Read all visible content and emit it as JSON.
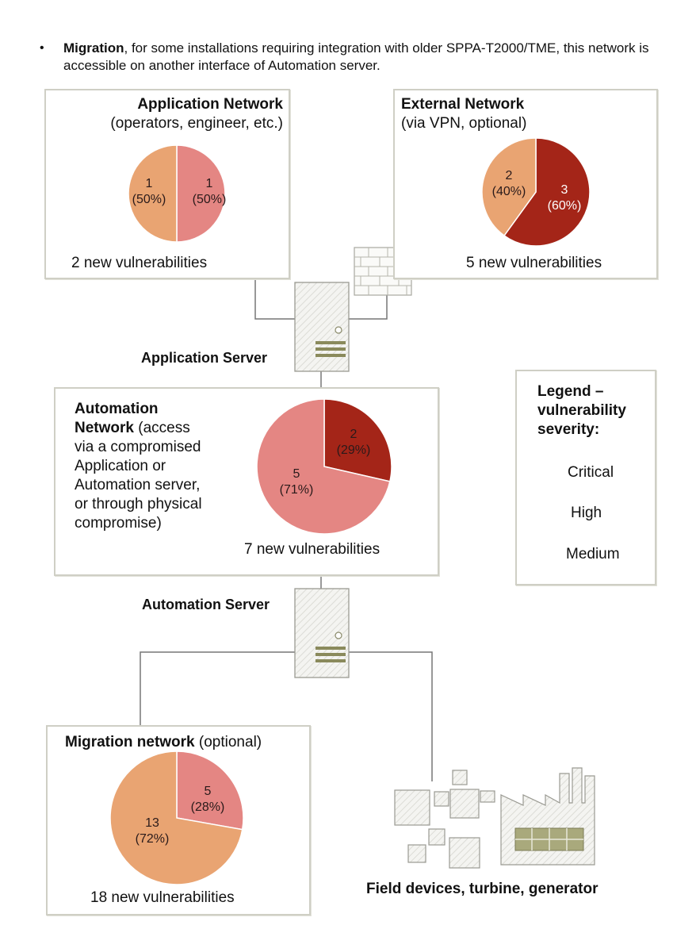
{
  "bullet": {
    "symbol": "•",
    "bold": "Migration",
    "rest": ", for some installations requiring integration with older SPPA-T2000/TME, this network is accessible on another interface of Automation server."
  },
  "colors": {
    "critical": "#a42518",
    "high": "#e48683",
    "medium": "#e9a472",
    "line": "#777777",
    "box_border": "#cfcfc5"
  },
  "networks": {
    "application": {
      "title": "Application Network",
      "subtitle": "(operators, engineer, etc.)",
      "summary": "2 new vulnerabilities",
      "slices": [
        {
          "severity": "high",
          "value": 1,
          "count": "1",
          "percent": "(50%)"
        },
        {
          "severity": "medium",
          "value": 1,
          "count": "1",
          "percent": "(50%)"
        }
      ]
    },
    "external": {
      "title": "External Network",
      "subtitle": "(via VPN, optional)",
      "summary": "5 new vulnerabilities",
      "slices": [
        {
          "severity": "critical",
          "value": 3,
          "count": "3",
          "percent": "(60%)"
        },
        {
          "severity": "medium",
          "value": 2,
          "count": "2",
          "percent": "(40%)"
        }
      ]
    },
    "automation": {
      "title_line1": "Automation",
      "title_line2": "Network",
      "desc_line1": "(access",
      "desc_line2": "via a compromised",
      "desc_line3": "Application or",
      "desc_line4": "Automation server,",
      "desc_line5": "or through physical",
      "desc_line6": "compromise)",
      "summary": "7 new vulnerabilities",
      "slices": [
        {
          "severity": "critical",
          "value": 2,
          "count": "2",
          "percent": "(29%)"
        },
        {
          "severity": "high",
          "value": 5,
          "count": "5",
          "percent": "(71%)"
        }
      ]
    },
    "migration": {
      "title": "Migration network",
      "subtitle": "(optional)",
      "summary": "18 new vulnerabilities",
      "slices": [
        {
          "severity": "high",
          "value": 5,
          "count": "5",
          "percent": "(28%)"
        },
        {
          "severity": "medium",
          "value": 13,
          "count": "13",
          "percent": "(72%)"
        }
      ]
    }
  },
  "servers": {
    "application": "Application Server",
    "automation": "Automation Server"
  },
  "field_devices": "Field devices, turbine, generator",
  "legend": {
    "title_line1": "Legend –",
    "title_line2": "vulnerability",
    "title_line3": "severity:",
    "items": [
      {
        "severity": "critical",
        "label": "Critical"
      },
      {
        "severity": "high",
        "label": "High"
      },
      {
        "severity": "medium",
        "label": "Medium"
      }
    ]
  }
}
